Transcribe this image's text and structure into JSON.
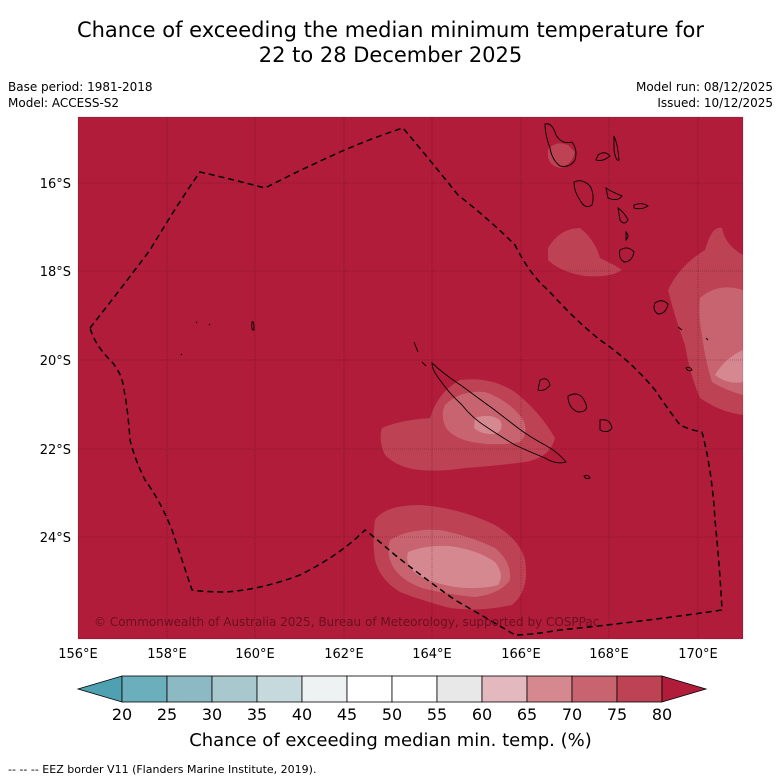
{
  "title": {
    "line1": "Chance of exceeding the median minimum temperature for",
    "line2": "22 to 28 December 2025"
  },
  "meta_left": {
    "base_period": "Base period: 1981-2018",
    "model": "Model: ACCESS-S2"
  },
  "meta_right": {
    "model_run": "Model run: 08/12/2025",
    "issued": "Issued: 10/12/2025"
  },
  "map": {
    "background_color": "#b11c3a",
    "lat_labels": [
      "16°S",
      "18°S",
      "20°S",
      "22°S",
      "24°S"
    ],
    "lon_labels": [
      "156°E",
      "158°E",
      "160°E",
      "162°E",
      "164°E",
      "166°E",
      "168°E",
      "170°E"
    ],
    "copyright": "© Commonwealth of Australia 2025, Bureau of Meteorology, supported by COSPPac"
  },
  "colorbar": {
    "tick_labels": [
      "20",
      "25",
      "30",
      "35",
      "40",
      "45",
      "50",
      "55",
      "60",
      "65",
      "70",
      "75",
      "80"
    ],
    "colors": [
      "#4fa0b0",
      "#6aafbb",
      "#8cb9c3",
      "#a8c8cd",
      "#c6d9dd",
      "#eef2f3",
      "#ffffff",
      "#ffffff",
      "#e8e8e8",
      "#e3b8bf",
      "#d58890",
      "#c8646f",
      "#bd4254",
      "#b11c3a"
    ],
    "label": "Chance of exceeding median min. temp. (%)"
  },
  "footnote": "--  --  -- EEZ border V11 (Flanders Marine Institute, 2019)."
}
